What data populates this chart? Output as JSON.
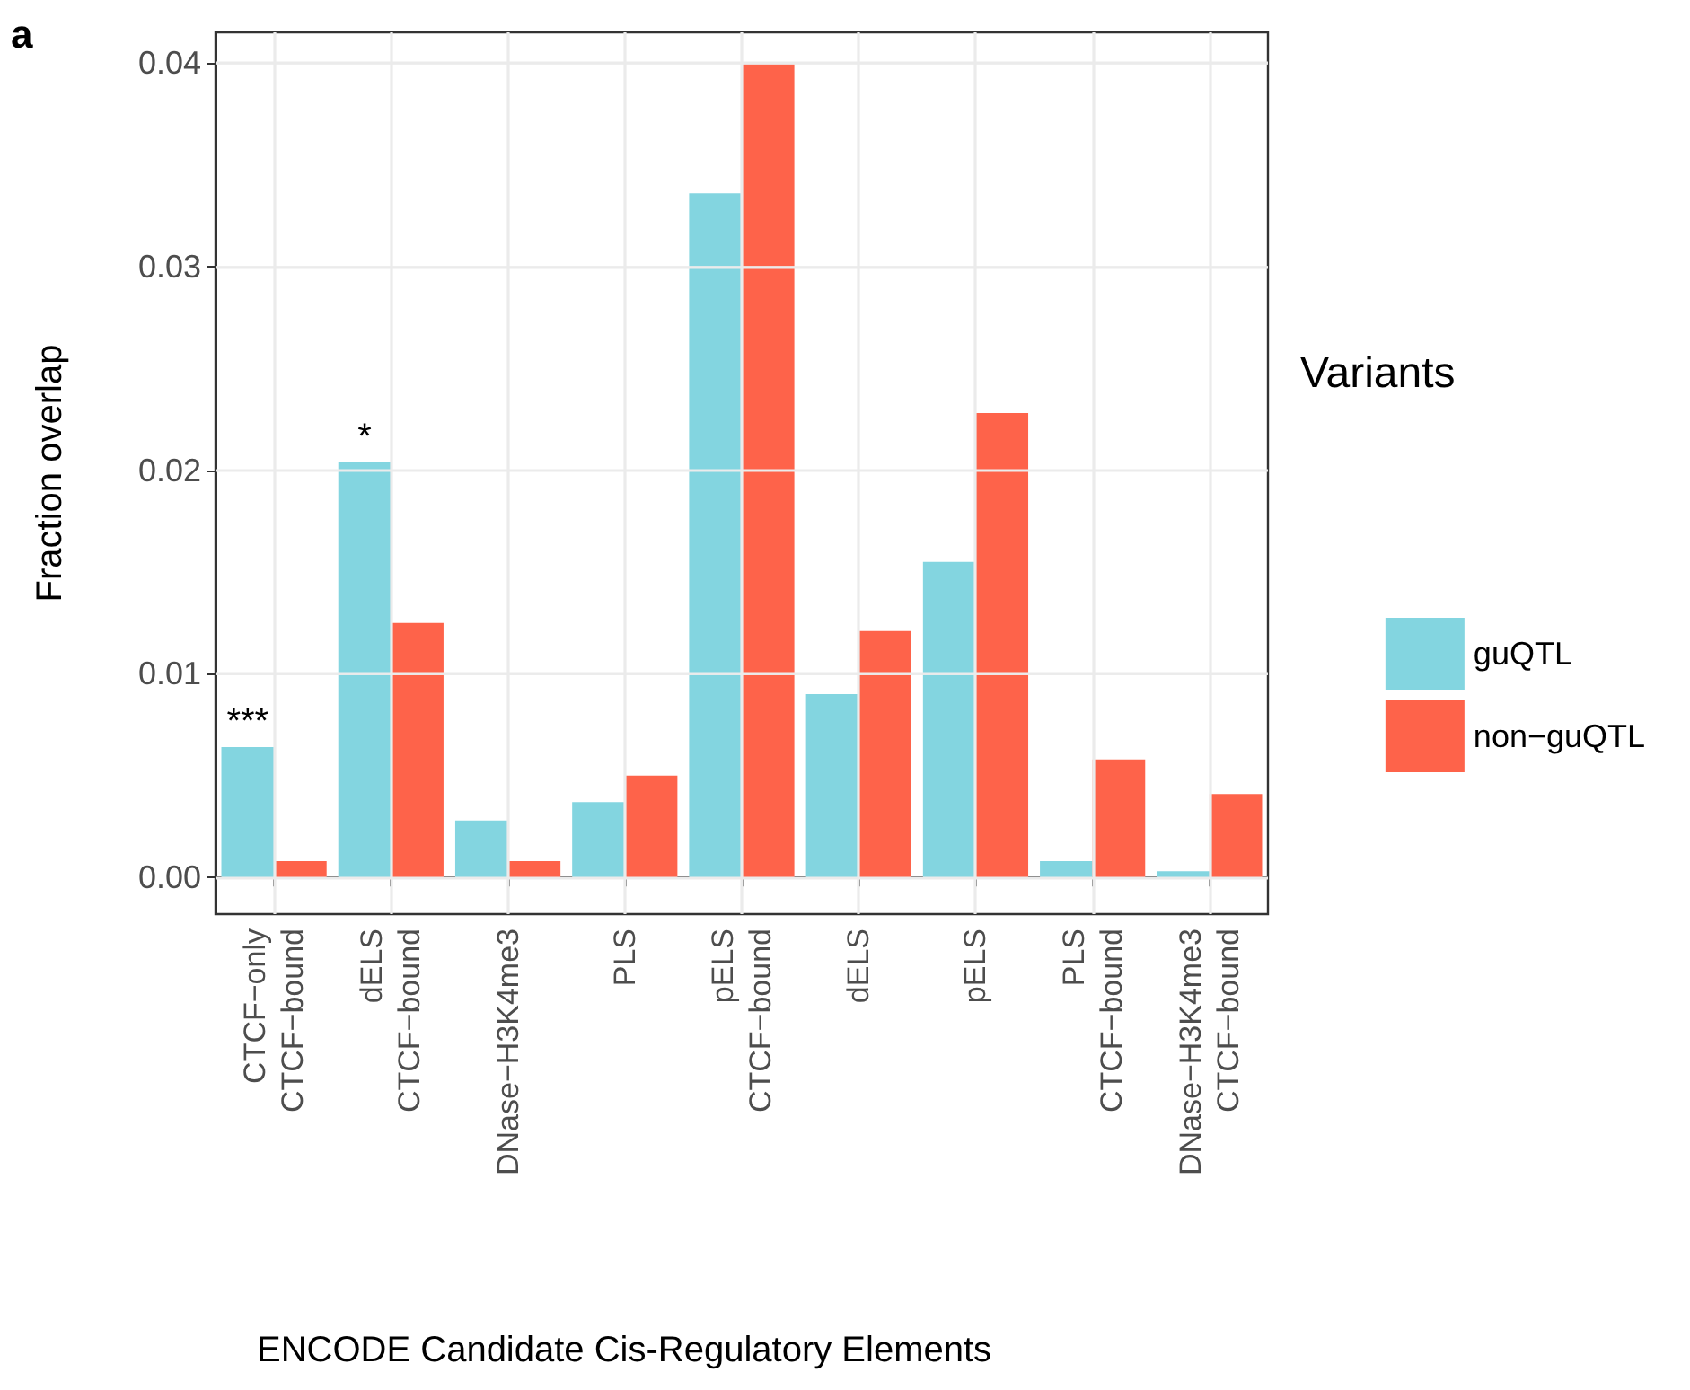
{
  "chart_data": {
    "type": "bar",
    "xlabel": "ENCODE Candidate Cis-Regulatory Elements",
    "ylabel": "Fraction overlap",
    "legend_title": "Variants",
    "categories": [
      "CTCF−only\nCTCF−bound",
      "dELS\nCTCF−bound",
      "DNase−H3K4me3",
      "PLS",
      "pELS\nCTCF−bound",
      "dELS",
      "pELS",
      "PLS\nCTCF−bound",
      "DNase−H3K4me3\nCTCF−bound"
    ],
    "series": [
      {
        "name": "guQTL",
        "color": "#83d5e0",
        "values": [
          0.0064,
          0.0204,
          0.0028,
          0.0037,
          0.0336,
          0.009,
          0.0155,
          0.0008,
          0.0003
        ]
      },
      {
        "name": "non−guQTL",
        "color": "#fe634a",
        "values": [
          0.0008,
          0.0125,
          0.0008,
          0.005,
          0.04,
          0.0121,
          0.0228,
          0.0058,
          0.0041
        ]
      }
    ],
    "ylim": [
      -0.0018,
      0.0415
    ],
    "yticks": [
      {
        "value": 0,
        "label": "0.00"
      },
      0.01,
      0.02,
      0.03,
      0.04
    ],
    "grid": true,
    "legend": "right",
    "annotations": [
      "a",
      {
        "text": "***",
        "x": "CTCF−only\nCTCF−bound",
        "y": 0.0064
      },
      {
        "text": "*",
        "x": "dELS\nCTCF−bound",
        "y": 0.0204
      }
    ]
  }
}
